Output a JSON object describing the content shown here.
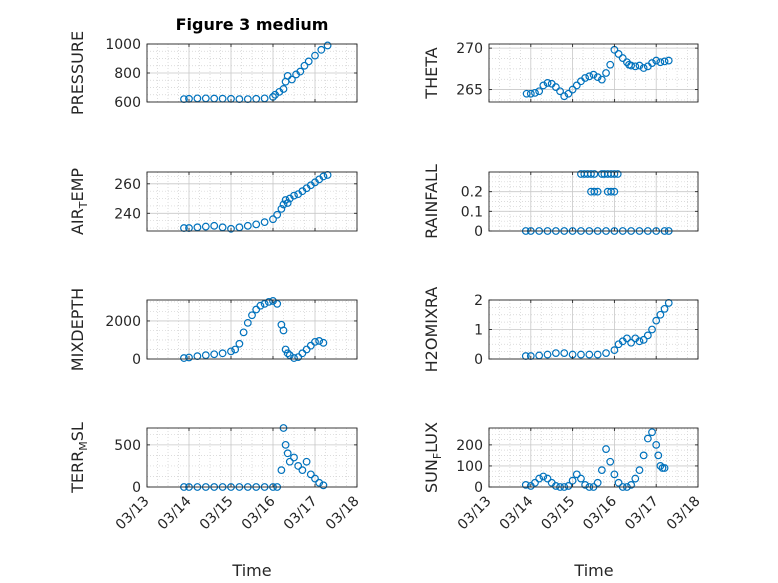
{
  "figure": {
    "title": "Figure 3 medium",
    "xlabel": "Time",
    "marker_color": "#0072BD"
  },
  "chart_data": [
    {
      "type": "scatter",
      "ylabel": {
        "base": "PRESSURE",
        "sub": "",
        "after": ""
      },
      "ylim": [
        600,
        1000
      ],
      "yticks": [
        600,
        800,
        1000
      ],
      "xlim": [
        0,
        5
      ],
      "xticks": [
        0,
        1,
        2,
        3,
        4,
        5
      ],
      "xticklabels": [],
      "grid": true,
      "series": [
        {
          "x": [
            0.88,
            1.0,
            1.2,
            1.4,
            1.6,
            1.8,
            2.0,
            2.2,
            2.4,
            2.6,
            2.8,
            3.0,
            3.05,
            3.15,
            3.25,
            3.3,
            3.35,
            3.45,
            3.55,
            3.65,
            3.75,
            3.85,
            4.0,
            4.15,
            4.3
          ],
          "y": [
            620,
            622,
            625,
            625,
            624,
            623,
            622,
            620,
            620,
            622,
            625,
            635,
            650,
            670,
            690,
            740,
            780,
            755,
            790,
            810,
            850,
            880,
            920,
            960,
            990
          ]
        }
      ]
    },
    {
      "type": "scatter",
      "ylabel": {
        "base": "THETA",
        "sub": "",
        "after": ""
      },
      "ylim": [
        263.5,
        270.5
      ],
      "yticks": [
        265,
        270
      ],
      "xlim": [
        0,
        5
      ],
      "xticks": [
        0,
        1,
        2,
        3,
        4,
        5
      ],
      "xticklabels": [],
      "grid": true,
      "series": [
        {
          "x": [
            0.9,
            1.0,
            1.1,
            1.2,
            1.3,
            1.4,
            1.5,
            1.6,
            1.7,
            1.8,
            1.9,
            2.0,
            2.1,
            2.2,
            2.3,
            2.4,
            2.5,
            2.6,
            2.7,
            2.8,
            2.9,
            3.0,
            3.1,
            3.2,
            3.3,
            3.35,
            3.4,
            3.5,
            3.6,
            3.7,
            3.8,
            3.9,
            4.0,
            4.1,
            4.2,
            4.3
          ],
          "y": [
            264.5,
            264.5,
            264.6,
            264.8,
            265.5,
            265.8,
            265.7,
            265.3,
            264.8,
            264.2,
            264.5,
            265.0,
            265.5,
            266.0,
            266.4,
            266.6,
            266.8,
            266.5,
            266.2,
            267.0,
            268.0,
            269.8,
            269.3,
            268.8,
            268.3,
            268.0,
            267.9,
            267.8,
            267.9,
            267.6,
            267.8,
            268.2,
            268.5,
            268.3,
            268.4,
            268.5
          ]
        }
      ]
    },
    {
      "type": "scatter",
      "ylabel": {
        "base": "AIR",
        "sub": "T",
        "after": "EMP"
      },
      "ylim": [
        228,
        268
      ],
      "yticks": [
        240,
        260
      ],
      "xlim": [
        0,
        5
      ],
      "xticks": [
        0,
        1,
        2,
        3,
        4,
        5
      ],
      "xticklabels": [],
      "grid": true,
      "series": [
        {
          "x": [
            0.88,
            1.0,
            1.2,
            1.4,
            1.6,
            1.8,
            2.0,
            2.2,
            2.4,
            2.6,
            2.8,
            3.0,
            3.1,
            3.2,
            3.25,
            3.3,
            3.35,
            3.4,
            3.5,
            3.6,
            3.7,
            3.8,
            3.9,
            4.0,
            4.1,
            4.2,
            4.3
          ],
          "y": [
            230,
            230,
            230.5,
            231,
            231.5,
            230.5,
            229.5,
            230.5,
            231.5,
            232.5,
            234,
            236,
            239,
            243,
            246,
            249,
            247,
            250,
            252,
            253,
            255,
            257,
            259,
            261,
            263,
            265,
            266
          ]
        }
      ]
    },
    {
      "type": "scatter",
      "ylabel": {
        "base": "RAINFALL",
        "sub": "",
        "after": ""
      },
      "ylim": [
        0,
        0.3
      ],
      "yticks": [
        0,
        0.1,
        0.2
      ],
      "xlim": [
        0,
        5
      ],
      "xticks": [
        0,
        1,
        2,
        3,
        4,
        5
      ],
      "xticklabels": [],
      "grid": true,
      "series": [
        {
          "x": [
            0.88,
            1.0,
            1.2,
            1.4,
            1.6,
            1.8,
            2.0,
            2.2,
            2.4,
            2.6,
            2.8,
            3.0,
            3.2,
            3.4,
            3.6,
            3.8,
            4.0,
            4.2,
            4.3,
            2.2,
            2.28,
            2.36,
            2.44,
            2.52,
            2.7,
            2.76,
            2.84,
            2.92,
            3.0,
            3.08,
            2.44,
            2.52,
            2.6,
            2.84,
            2.92,
            3.0
          ],
          "y": [
            0,
            0,
            0,
            0,
            0,
            0,
            0,
            0,
            0,
            0,
            0,
            0,
            0,
            0,
            0,
            0,
            0,
            0,
            0,
            0.29,
            0.29,
            0.29,
            0.29,
            0.29,
            0.29,
            0.29,
            0.29,
            0.29,
            0.29,
            0.29,
            0.2,
            0.2,
            0.2,
            0.2,
            0.2,
            0.2
          ]
        }
      ]
    },
    {
      "type": "scatter",
      "ylabel": {
        "base": "MIXDEPTH",
        "sub": "",
        "after": ""
      },
      "ylim": [
        0,
        3100
      ],
      "yticks": [
        0,
        2000
      ],
      "xlim": [
        0,
        5
      ],
      "xticks": [
        0,
        1,
        2,
        3,
        4,
        5
      ],
      "xticklabels": [],
      "grid": true,
      "series": [
        {
          "x": [
            0.88,
            1.0,
            1.2,
            1.4,
            1.6,
            1.8,
            2.0,
            2.1,
            2.2,
            2.3,
            2.4,
            2.5,
            2.6,
            2.7,
            2.8,
            2.9,
            3.0,
            3.1,
            3.2,
            3.25,
            3.3,
            3.35,
            3.4,
            3.5,
            3.6,
            3.7,
            3.8,
            3.9,
            4.0,
            4.1,
            4.2
          ],
          "y": [
            50,
            80,
            150,
            200,
            250,
            300,
            400,
            500,
            800,
            1400,
            1900,
            2300,
            2600,
            2800,
            2900,
            3000,
            3050,
            2900,
            1800,
            1500,
            500,
            300,
            200,
            50,
            100,
            300,
            500,
            700,
            900,
            950,
            850
          ]
        }
      ]
    },
    {
      "type": "scatter",
      "ylabel": {
        "base": "H2OMIXRA",
        "sub": "",
        "after": ""
      },
      "ylim": [
        0,
        2
      ],
      "yticks": [
        0,
        1,
        2
      ],
      "xlim": [
        0,
        5
      ],
      "xticks": [
        0,
        1,
        2,
        3,
        4,
        5
      ],
      "xticklabels": [],
      "grid": true,
      "series": [
        {
          "x": [
            0.88,
            1.0,
            1.2,
            1.4,
            1.6,
            1.8,
            2.0,
            2.2,
            2.4,
            2.6,
            2.8,
            3.0,
            3.1,
            3.2,
            3.3,
            3.4,
            3.5,
            3.6,
            3.7,
            3.8,
            3.9,
            4.0,
            4.1,
            4.2,
            4.3
          ],
          "y": [
            0.1,
            0.1,
            0.12,
            0.15,
            0.2,
            0.2,
            0.15,
            0.15,
            0.15,
            0.15,
            0.2,
            0.3,
            0.5,
            0.6,
            0.7,
            0.55,
            0.7,
            0.6,
            0.65,
            0.8,
            1.0,
            1.3,
            1.5,
            1.7,
            1.9
          ]
        }
      ]
    },
    {
      "type": "scatter",
      "ylabel": {
        "base": "TERR",
        "sub": "M",
        "after": "SL"
      },
      "ylim": [
        0,
        700
      ],
      "yticks": [
        0,
        500
      ],
      "xlim": [
        0,
        5
      ],
      "xticks": [
        0,
        1,
        2,
        3,
        4,
        5
      ],
      "xticklabels": [
        "03/13",
        "03/14",
        "03/15",
        "03/16",
        "03/17",
        "03/18"
      ],
      "grid": true,
      "series": [
        {
          "x": [
            0.88,
            1.0,
            1.2,
            1.4,
            1.6,
            1.8,
            2.0,
            2.2,
            2.4,
            2.6,
            2.8,
            3.0,
            3.1,
            3.2,
            3.25,
            3.3,
            3.35,
            3.4,
            3.5,
            3.6,
            3.7,
            3.8,
            3.9,
            4.0,
            4.1,
            4.2
          ],
          "y": [
            0,
            0,
            0,
            0,
            0,
            0,
            0,
            0,
            0,
            0,
            0,
            0,
            0,
            200,
            700,
            500,
            400,
            300,
            350,
            250,
            200,
            300,
            150,
            100,
            50,
            20
          ]
        }
      ]
    },
    {
      "type": "scatter",
      "ylabel": {
        "base": "SUN",
        "sub": "F",
        "after": "LUX"
      },
      "ylim": [
        0,
        280
      ],
      "yticks": [
        0,
        100,
        200
      ],
      "xlim": [
        0,
        5
      ],
      "xticks": [
        0,
        1,
        2,
        3,
        4,
        5
      ],
      "xticklabels": [
        "03/13",
        "03/14",
        "03/15",
        "03/16",
        "03/17",
        "03/18"
      ],
      "grid": true,
      "series": [
        {
          "x": [
            0.88,
            1.0,
            1.1,
            1.2,
            1.3,
            1.4,
            1.5,
            1.6,
            1.7,
            1.8,
            1.9,
            2.0,
            2.1,
            2.2,
            2.3,
            2.4,
            2.5,
            2.6,
            2.7,
            2.8,
            2.9,
            3.0,
            3.1,
            3.2,
            3.3,
            3.4,
            3.5,
            3.6,
            3.7,
            3.8,
            3.9,
            4.0,
            4.05,
            4.1,
            4.15,
            4.2
          ],
          "y": [
            10,
            5,
            20,
            40,
            50,
            40,
            20,
            5,
            0,
            0,
            5,
            30,
            60,
            40,
            10,
            0,
            0,
            20,
            80,
            180,
            120,
            60,
            20,
            0,
            0,
            10,
            40,
            80,
            150,
            230,
            260,
            200,
            150,
            100,
            90,
            90
          ]
        }
      ]
    }
  ]
}
